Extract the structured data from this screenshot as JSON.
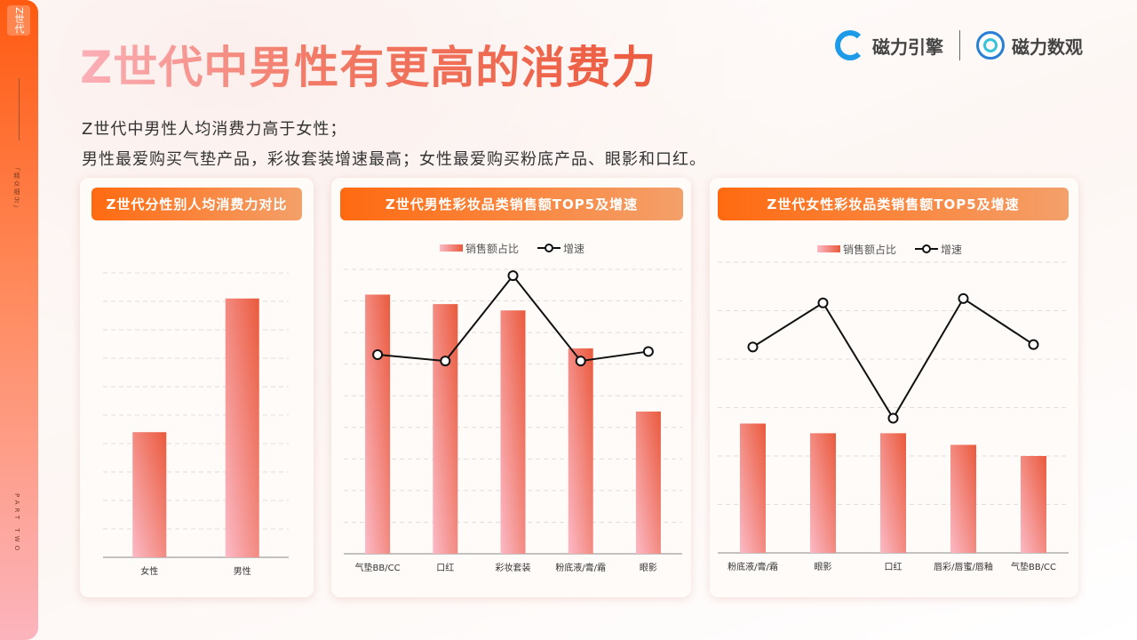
{
  "sidebar": {
    "tag": "Z世代",
    "section": "「精众细分」",
    "part": "PART TWO"
  },
  "header": {
    "title": "Z世代中男性有更高的消费力",
    "logo1": "磁力引擎",
    "logo2": "磁力数观"
  },
  "summary": {
    "line1": "Z世代中男性人均消费力高于女性；",
    "line2": "男性最爱购买气垫产品，彩妆套装增速最高；女性最爱购买粉底产品、眼影和口红。"
  },
  "colors": {
    "accent": "#ff6a10",
    "bar_top": "#ea5a3c",
    "bar_bottom": "#fbbac6",
    "line": "#111111"
  },
  "chart_data": [
    {
      "type": "bar",
      "title": "Z世代分性别人均消费力对比",
      "categories": [
        "女性",
        "男性"
      ],
      "series": [
        {
          "name": "人均消费力",
          "values": [
            4.4,
            9.1
          ]
        }
      ],
      "ylim": [
        0,
        10
      ],
      "grid": true,
      "units": "relative"
    },
    {
      "type": "bar+line",
      "title": "Z世代男性彩妆品类销售额TOP5及增速",
      "categories": [
        "气垫BB/CC",
        "口红",
        "彩妆套装",
        "粉底液/膏/霜",
        "眼影"
      ],
      "series": [
        {
          "name": "销售额占比",
          "type": "bar",
          "values": [
            8.2,
            7.9,
            7.7,
            6.5,
            4.5
          ]
        },
        {
          "name": "增速",
          "type": "line",
          "values": [
            6.3,
            6.1,
            8.8,
            6.1,
            6.4
          ]
        }
      ],
      "ylim": [
        0,
        9
      ],
      "grid": true,
      "legend": "top-center",
      "units": "relative"
    },
    {
      "type": "bar+line",
      "title": "Z世代女性彩妆品类销售额TOP5及增速",
      "categories": [
        "粉底液/膏/霜",
        "眼影",
        "口红",
        "唇彩/唇蜜/唇釉",
        "气垫BB/CC"
      ],
      "series": [
        {
          "name": "销售额占比",
          "type": "bar",
          "values": [
            2.67,
            2.47,
            2.47,
            2.23,
            2.0
          ]
        },
        {
          "name": "增速",
          "type": "line",
          "values": [
            4.25,
            5.16,
            2.78,
            5.25,
            4.3
          ]
        }
      ],
      "ylim": [
        0,
        6
      ],
      "grid": true,
      "legend": "top-center",
      "units": "relative"
    }
  ]
}
